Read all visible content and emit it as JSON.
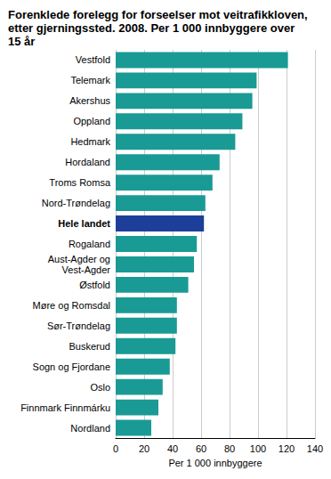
{
  "chart_data": {
    "type": "bar",
    "orientation": "horizontal",
    "title": "Forenklede forelegg for forseelser mot veitrafikkloven,\netter gjerningssted. 2008. Per 1 000 innbyggere over\n15 år",
    "x_label": "Per 1 000 innbyggere",
    "categories": [
      "Vestfold",
      "Telemark",
      "Akershus",
      "Oppland",
      "Hedmark",
      "Hordaland",
      "Troms Romsa",
      "Nord-Trøndelag",
      "Hele landet",
      "Rogaland",
      "Aust-Agder og\nVest-Agder",
      "Østfold",
      "Møre og Romsdal",
      "Sør-Trøndelag",
      "Buskerud",
      "Sogn og Fjordane",
      "Oslo",
      "Finnmark Finnmárku",
      "Nordland"
    ],
    "values": [
      121,
      99,
      96,
      89,
      84,
      73,
      68,
      63,
      62,
      57,
      55,
      51,
      43,
      43,
      42,
      38,
      33,
      30,
      25
    ],
    "colors": [
      "#1a9a94",
      "#1a9a94",
      "#1a9a94",
      "#1a9a94",
      "#1a9a94",
      "#1a9a94",
      "#1a9a94",
      "#1a9a94",
      "#1d3f9a",
      "#1a9a94",
      "#1a9a94",
      "#1a9a94",
      "#1a9a94",
      "#1a9a94",
      "#1a9a94",
      "#1a9a94",
      "#1a9a94",
      "#1a9a94",
      "#1a9a94"
    ],
    "xlim": [
      0,
      140
    ],
    "xticks": [
      0,
      20,
      40,
      60,
      80,
      100,
      120,
      140
    ],
    "grid": true
  }
}
